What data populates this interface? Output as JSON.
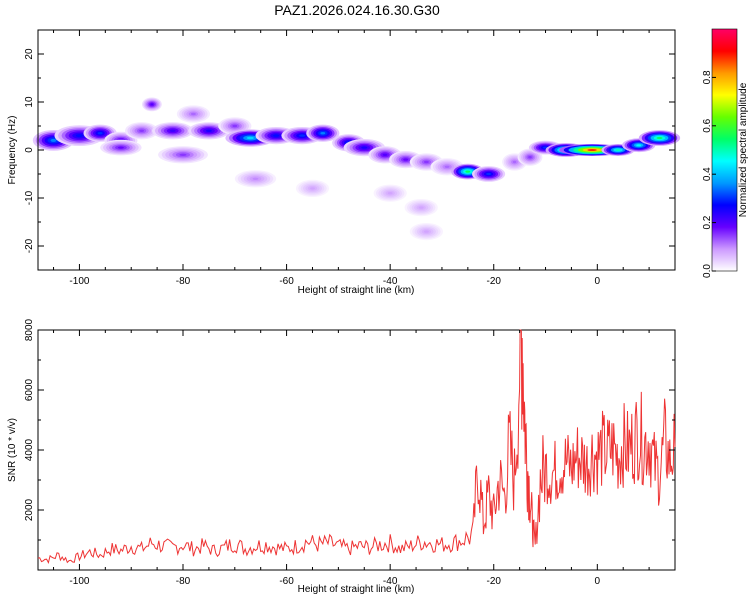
{
  "chart_data": [
    {
      "type": "heatmap",
      "title": "PAZ1.2026.024.16.30.G30",
      "xlabel": "Height of straight line (km)",
      "ylabel": "Frequency (Hz)",
      "xlim": [
        -108,
        15
      ],
      "ylim": [
        -25,
        25
      ],
      "xticks": [
        -100,
        -80,
        -60,
        -40,
        -20,
        0
      ],
      "yticks": [
        -20,
        -10,
        0,
        10,
        20
      ],
      "colorbar": {
        "label": "Normalized spectral amplitude",
        "range": [
          0,
          1
        ],
        "ticks": [
          "0.0",
          "0.2",
          "0.4",
          "0.6",
          "0.8"
        ],
        "colors": [
          "#ffffff",
          "#cc99ff",
          "#6600ff",
          "#0000ff",
          "#0099ff",
          "#00ffff",
          "#00ff66",
          "#66ff00",
          "#ffff00",
          "#ff9900",
          "#ff0000",
          "#ff0066"
        ]
      },
      "blobs": [
        {
          "x": -105,
          "f": 2.0,
          "w": 2.5,
          "h": 1.2,
          "a": 0.35
        },
        {
          "x": -100,
          "f": 3.0,
          "w": 3.0,
          "h": 1.2,
          "a": 0.28
        },
        {
          "x": -96,
          "f": 3.5,
          "w": 2.0,
          "h": 1.0,
          "a": 0.3
        },
        {
          "x": -92,
          "f": 2.0,
          "w": 2.0,
          "h": 1.0,
          "a": 0.2
        },
        {
          "x": -88,
          "f": 4.0,
          "w": 2.0,
          "h": 1.0,
          "a": 0.15
        },
        {
          "x": -86,
          "f": 9.5,
          "w": 1.2,
          "h": 0.8,
          "a": 0.2
        },
        {
          "x": -82,
          "f": 4.0,
          "w": 2.5,
          "h": 1.0,
          "a": 0.22
        },
        {
          "x": -78,
          "f": 7.5,
          "w": 2.0,
          "h": 1.0,
          "a": 0.12
        },
        {
          "x": -75,
          "f": 4.0,
          "w": 2.5,
          "h": 1.0,
          "a": 0.25
        },
        {
          "x": -70,
          "f": 5.0,
          "w": 2.0,
          "h": 1.0,
          "a": 0.15
        },
        {
          "x": -67,
          "f": 2.5,
          "w": 3.0,
          "h": 1.0,
          "a": 0.42
        },
        {
          "x": -62,
          "f": 3.0,
          "w": 2.5,
          "h": 1.0,
          "a": 0.28
        },
        {
          "x": -57,
          "f": 3.0,
          "w": 2.5,
          "h": 1.0,
          "a": 0.3
        },
        {
          "x": -53,
          "f": 3.5,
          "w": 2.0,
          "h": 1.0,
          "a": 0.35
        },
        {
          "x": -48,
          "f": 1.5,
          "w": 2.0,
          "h": 1.0,
          "a": 0.3
        },
        {
          "x": -45,
          "f": 0.5,
          "w": 2.5,
          "h": 1.0,
          "a": 0.25
        },
        {
          "x": -41,
          "f": -1.0,
          "w": 2.0,
          "h": 1.0,
          "a": 0.2
        },
        {
          "x": -37,
          "f": -2.0,
          "w": 2.0,
          "h": 1.0,
          "a": 0.18
        },
        {
          "x": -33,
          "f": -2.5,
          "w": 2.0,
          "h": 1.0,
          "a": 0.15
        },
        {
          "x": -29,
          "f": -3.5,
          "w": 2.0,
          "h": 1.0,
          "a": 0.12
        },
        {
          "x": -25,
          "f": -4.5,
          "w": 2.0,
          "h": 0.9,
          "a": 0.55
        },
        {
          "x": -21,
          "f": -5.0,
          "w": 2.0,
          "h": 0.9,
          "a": 0.3
        },
        {
          "x": -16,
          "f": -2.5,
          "w": 1.5,
          "h": 1.0,
          "a": 0.12
        },
        {
          "x": -13,
          "f": -1.5,
          "w": 1.5,
          "h": 1.0,
          "a": 0.15
        },
        {
          "x": -10,
          "f": 0.5,
          "w": 2.0,
          "h": 0.8,
          "a": 0.3
        },
        {
          "x": -6,
          "f": 0.0,
          "w": 2.5,
          "h": 0.8,
          "a": 0.6
        },
        {
          "x": -1,
          "f": 0.0,
          "w": 4.0,
          "h": 0.7,
          "a": 0.9
        },
        {
          "x": 4,
          "f": 0.0,
          "w": 2.0,
          "h": 0.7,
          "a": 0.5
        },
        {
          "x": 8,
          "f": 1.0,
          "w": 2.0,
          "h": 0.8,
          "a": 0.45
        },
        {
          "x": 12,
          "f": 2.5,
          "w": 2.5,
          "h": 0.9,
          "a": 0.55
        },
        {
          "x": -92,
          "f": 0.5,
          "w": 2.5,
          "h": 0.9,
          "a": 0.18
        },
        {
          "x": -80,
          "f": -1.0,
          "w": 3.0,
          "h": 1.0,
          "a": 0.15
        },
        {
          "x": -66,
          "f": -6.0,
          "w": 2.5,
          "h": 1.0,
          "a": 0.1
        },
        {
          "x": -55,
          "f": -8.0,
          "w": 2.0,
          "h": 1.0,
          "a": 0.08
        },
        {
          "x": -40,
          "f": -9.0,
          "w": 2.0,
          "h": 1.0,
          "a": 0.08
        },
        {
          "x": -34,
          "f": -12.0,
          "w": 2.0,
          "h": 1.0,
          "a": 0.08
        },
        {
          "x": -33,
          "f": -17.0,
          "w": 2.0,
          "h": 1.0,
          "a": 0.08
        }
      ]
    },
    {
      "type": "line",
      "xlabel": "Height of straight line (km)",
      "ylabel": "SNR (10 * v/v)",
      "xlim": [
        -108,
        15
      ],
      "ylim": [
        0,
        8000
      ],
      "xticks": [
        -100,
        -80,
        -60,
        -40,
        -20,
        0
      ],
      "yticks": [
        2000,
        4000,
        6000,
        8000
      ],
      "color": "#ee3333",
      "x": [
        -108,
        -106,
        -104,
        -102,
        -100,
        -98,
        -96,
        -94,
        -92,
        -90,
        -88,
        -86,
        -84,
        -82,
        -80,
        -78,
        -76,
        -74,
        -72,
        -70,
        -68,
        -66,
        -64,
        -62,
        -60,
        -58,
        -56,
        -54,
        -52,
        -50,
        -48,
        -46,
        -44,
        -42,
        -40,
        -38,
        -36,
        -34,
        -32,
        -30,
        -28,
        -26,
        -24,
        -23,
        -22,
        -21,
        -20,
        -19,
        -18,
        -17,
        -16,
        -15,
        -14.5,
        -14,
        -13.5,
        -13,
        -12.5,
        -12,
        -11,
        -10,
        -9,
        -8,
        -7,
        -6,
        -5,
        -4,
        -3,
        -2,
        -1,
        0,
        1,
        2,
        3,
        4,
        5,
        6,
        7,
        8,
        9,
        10,
        11,
        12,
        13,
        14,
        15
      ],
      "y": [
        400,
        350,
        500,
        300,
        450,
        600,
        500,
        700,
        650,
        800,
        700,
        900,
        800,
        750,
        850,
        700,
        800,
        650,
        750,
        900,
        700,
        800,
        850,
        750,
        700,
        800,
        950,
        850,
        900,
        800,
        700,
        800,
        750,
        850,
        900,
        700,
        800,
        950,
        900,
        850,
        900,
        1000,
        1200,
        3500,
        1500,
        2500,
        1800,
        3000,
        2500,
        4000,
        3000,
        7000,
        8000,
        5000,
        3500,
        2500,
        1500,
        800,
        3000,
        3400,
        3200,
        3300,
        3500,
        3600,
        3400,
        3800,
        3700,
        3500,
        3900,
        3800,
        4000,
        3900,
        4100,
        3800,
        4200,
        4000,
        4300,
        4600,
        4200,
        4400,
        3500,
        3200,
        4300,
        3600,
        4100
      ]
    }
  ]
}
